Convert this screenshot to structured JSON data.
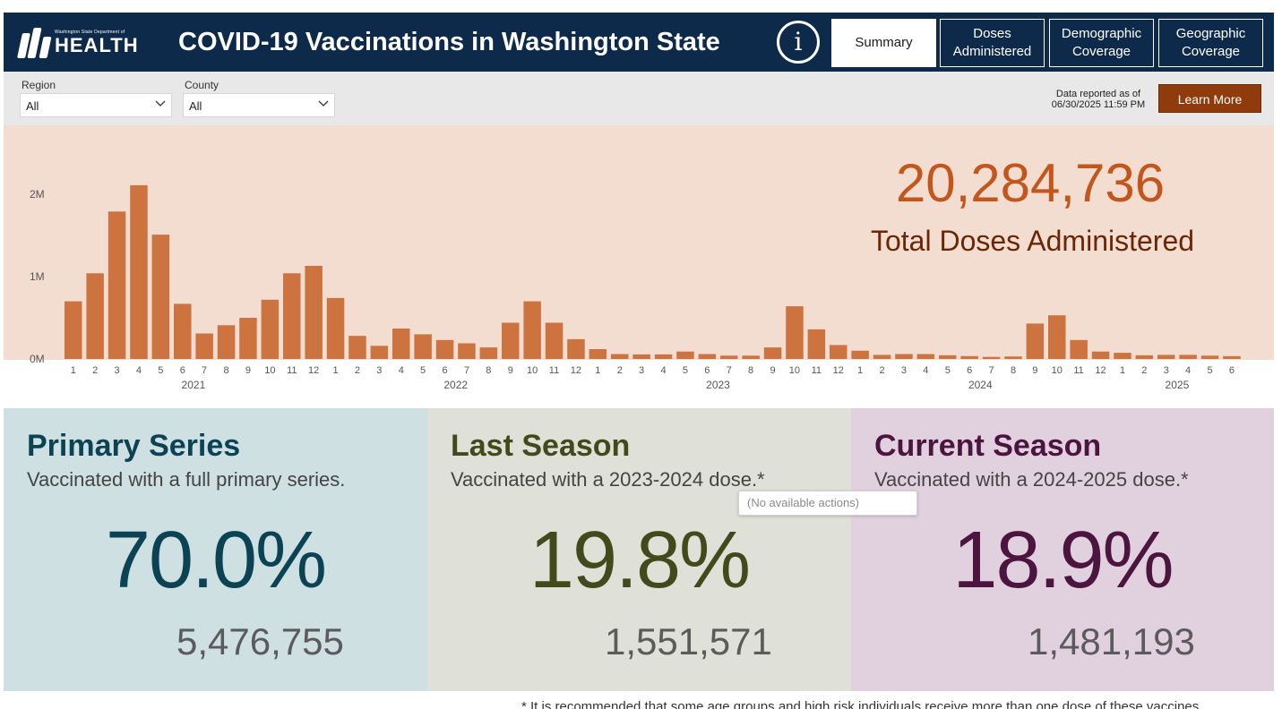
{
  "header": {
    "logo_small": "Washington State Department of",
    "logo_big": "HEALTH",
    "title": "COVID-19 Vaccinations in Washington State",
    "info_glyph": "i",
    "tabs": [
      {
        "label": "Summary",
        "active": true
      },
      {
        "label": "Doses Administered",
        "active": false
      },
      {
        "label": "Demographic Coverage",
        "active": false
      },
      {
        "label": "Geographic Coverage",
        "active": false
      }
    ]
  },
  "filters": {
    "region": {
      "label": "Region",
      "value": "All"
    },
    "county": {
      "label": "County",
      "value": "All"
    }
  },
  "reported": {
    "line1": "Data reported as of",
    "line2": "06/30/2025 11:59 PM"
  },
  "learn_more_label": "Learn More",
  "total": {
    "value": "20,284,736",
    "label": "Total Doses Administered"
  },
  "chart_data": {
    "type": "bar",
    "title": "",
    "xlabel": "",
    "ylabel": "",
    "ylim": [
      0,
      2300000
    ],
    "y_ticks": [
      0,
      1000000,
      2000000
    ],
    "y_tick_labels": [
      "0M",
      "1M",
      "2M"
    ],
    "color": "#cc7340",
    "categories": [
      "1",
      "2",
      "3",
      "4",
      "5",
      "6",
      "7",
      "8",
      "9",
      "10",
      "11",
      "12",
      "1",
      "2",
      "3",
      "4",
      "5",
      "6",
      "7",
      "8",
      "9",
      "10",
      "11",
      "12",
      "1",
      "2",
      "3",
      "4",
      "5",
      "6",
      "7",
      "8",
      "9",
      "10",
      "11",
      "12",
      "1",
      "2",
      "3",
      "4",
      "5",
      "6",
      "7",
      "8",
      "9",
      "10",
      "11",
      "12",
      "1",
      "2",
      "3",
      "4",
      "5",
      "6"
    ],
    "values": [
      700000,
      1040000,
      1790000,
      2110000,
      1510000,
      670000,
      310000,
      410000,
      500000,
      720000,
      1040000,
      1130000,
      740000,
      280000,
      160000,
      370000,
      300000,
      230000,
      190000,
      140000,
      440000,
      700000,
      440000,
      240000,
      120000,
      60000,
      55000,
      55000,
      90000,
      60000,
      40000,
      40000,
      140000,
      640000,
      360000,
      170000,
      100000,
      50000,
      60000,
      60000,
      45000,
      35000,
      25000,
      30000,
      430000,
      530000,
      230000,
      90000,
      75000,
      45000,
      50000,
      50000,
      40000,
      35000
    ],
    "year_labels": [
      {
        "label": "2021",
        "start": 0,
        "end": 11
      },
      {
        "label": "2022",
        "start": 12,
        "end": 23
      },
      {
        "label": "2023",
        "start": 24,
        "end": 35
      },
      {
        "label": "2024",
        "start": 36,
        "end": 47
      },
      {
        "label": "2025",
        "start": 48,
        "end": 53
      }
    ]
  },
  "cards": {
    "primary": {
      "title": "Primary Series",
      "subtitle": "Vaccinated with a full primary series.",
      "percent": "70.0%",
      "count": "5,476,755"
    },
    "last": {
      "title": "Last Season",
      "subtitle": "Vaccinated with a 2023-2024 dose.*",
      "percent": "19.8%",
      "count": "1,551,571"
    },
    "current": {
      "title": "Current Season",
      "subtitle": "Vaccinated with a 2024-2025 dose.*",
      "percent": "18.9%",
      "count": "1,481,193"
    }
  },
  "tooltip_text": "(No available actions)",
  "footnote": "* It is recommended that some age groups and high risk individuals receive more than one dose of these vaccines."
}
